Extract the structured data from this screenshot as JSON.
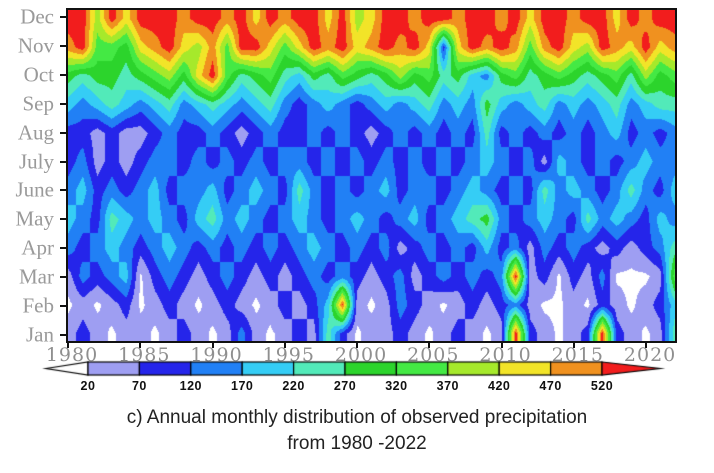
{
  "caption": {
    "line1": "c) Annual monthly distribution of observed precipitation",
    "line2": "from 1980 -2022"
  },
  "chart_data": {
    "type": "heatmap",
    "subtype": "filled-contour",
    "xlabel": "",
    "ylabel": "",
    "x_start": 1980,
    "x_end": 2022,
    "x_ticks": [
      1980,
      1985,
      1990,
      1995,
      2000,
      2005,
      2010,
      2015,
      2020
    ],
    "months": [
      "Jan",
      "Feb",
      "Mar",
      "Apr",
      "May",
      "June",
      "July",
      "Aug",
      "Sep",
      "Oct",
      "Nov",
      "Dec"
    ],
    "levels": [
      20,
      70,
      120,
      170,
      220,
      270,
      320,
      370,
      420,
      470,
      520
    ],
    "colorbar_labels": [
      "20",
      "70",
      "120",
      "170",
      "220",
      "270",
      "320",
      "370",
      "420",
      "470",
      "520"
    ],
    "colors": {
      "below": "#ffffff",
      "bins": [
        "#9e9ef2",
        "#2525ea",
        "#2180f5",
        "#35cdf5",
        "#52eab9",
        "#2cd42c",
        "#44e944",
        "#a6e92b",
        "#f2e428",
        "#f0911f"
      ],
      "above": "#f21d1d",
      "axis": "#111111",
      "tick_label": "#8f8f8f",
      "month_label": "#9a9a9a"
    },
    "values_by_year": [
      [
        45,
        10,
        45,
        145,
        195,
        145,
        95,
        95,
        195,
        295,
        495,
        550
      ],
      [
        95,
        45,
        145,
        95,
        145,
        195,
        145,
        95,
        145,
        245,
        550,
        550
      ],
      [
        45,
        10,
        95,
        145,
        95,
        95,
        45,
        45,
        195,
        295,
        345,
        395
      ],
      [
        10,
        45,
        145,
        195,
        245,
        145,
        95,
        95,
        245,
        295,
        345,
        550
      ],
      [
        45,
        95,
        195,
        145,
        195,
        95,
        45,
        45,
        195,
        245,
        295,
        445
      ],
      [
        45,
        10,
        10,
        95,
        145,
        145,
        95,
        45,
        145,
        295,
        445,
        550
      ],
      [
        10,
        45,
        95,
        145,
        195,
        195,
        145,
        95,
        195,
        345,
        495,
        550
      ],
      [
        45,
        95,
        145,
        195,
        145,
        95,
        145,
        145,
        245,
        395,
        550,
        550
      ],
      [
        95,
        45,
        95,
        145,
        95,
        145,
        95,
        95,
        145,
        295,
        445,
        495
      ],
      [
        45,
        10,
        45,
        95,
        195,
        145,
        145,
        95,
        195,
        445,
        395,
        550
      ],
      [
        10,
        45,
        95,
        145,
        245,
        195,
        95,
        145,
        245,
        550,
        495,
        550
      ],
      [
        45,
        95,
        145,
        95,
        145,
        95,
        145,
        95,
        195,
        345,
        345,
        495
      ],
      [
        145,
        45,
        95,
        145,
        195,
        145,
        95,
        45,
        145,
        245,
        550,
        550
      ],
      [
        45,
        10,
        45,
        95,
        145,
        195,
        145,
        95,
        195,
        295,
        550,
        445
      ],
      [
        10,
        45,
        95,
        145,
        95,
        145,
        95,
        145,
        245,
        345,
        445,
        550
      ],
      [
        45,
        95,
        45,
        95,
        145,
        95,
        145,
        95,
        145,
        245,
        345,
        495
      ],
      [
        95,
        45,
        95,
        145,
        195,
        245,
        145,
        95,
        95,
        195,
        445,
        550
      ],
      [
        45,
        95,
        145,
        195,
        145,
        145,
        95,
        145,
        145,
        295,
        550,
        550
      ],
      [
        245,
        195,
        95,
        145,
        95,
        95,
        145,
        95,
        195,
        245,
        495,
        445
      ],
      [
        95,
        530,
        145,
        95,
        145,
        145,
        95,
        145,
        145,
        345,
        550,
        550
      ],
      [
        10,
        45,
        95,
        145,
        195,
        95,
        145,
        95,
        95,
        295,
        445,
        395
      ],
      [
        45,
        10,
        45,
        95,
        145,
        145,
        95,
        45,
        145,
        245,
        495,
        445
      ],
      [
        45,
        45,
        95,
        145,
        95,
        195,
        145,
        95,
        195,
        295,
        550,
        550
      ],
      [
        95,
        145,
        145,
        45,
        145,
        95,
        95,
        145,
        145,
        395,
        495,
        550
      ],
      [
        45,
        95,
        45,
        95,
        195,
        145,
        145,
        95,
        195,
        295,
        550,
        495
      ],
      [
        10,
        45,
        95,
        145,
        95,
        145,
        95,
        145,
        245,
        345,
        445,
        550
      ],
      [
        45,
        10,
        145,
        95,
        145,
        95,
        145,
        95,
        145,
        245,
        95,
        550
      ],
      [
        95,
        45,
        95,
        145,
        195,
        145,
        95,
        145,
        195,
        295,
        445,
        495
      ],
      [
        45,
        95,
        145,
        95,
        245,
        195,
        145,
        95,
        145,
        195,
        550,
        550
      ],
      [
        10,
        45,
        95,
        195,
        295,
        145,
        195,
        245,
        295,
        145,
        495,
        550
      ],
      [
        45,
        95,
        145,
        95,
        145,
        95,
        145,
        95,
        195,
        295,
        550,
        495
      ],
      [
        550,
        145,
        550,
        145,
        95,
        145,
        95,
        145,
        145,
        345,
        495,
        550
      ],
      [
        95,
        45,
        45,
        45,
        145,
        95,
        145,
        95,
        195,
        245,
        345,
        445
      ],
      [
        45,
        10,
        95,
        145,
        195,
        245,
        45,
        145,
        245,
        295,
        495,
        550
      ],
      [
        10,
        10,
        10,
        95,
        145,
        145,
        195,
        95,
        145,
        345,
        550,
        550
      ],
      [
        45,
        45,
        95,
        145,
        95,
        195,
        145,
        145,
        195,
        295,
        445,
        495
      ],
      [
        95,
        10,
        45,
        95,
        245,
        145,
        95,
        95,
        145,
        245,
        395,
        550
      ],
      [
        550,
        95,
        145,
        45,
        145,
        95,
        145,
        145,
        195,
        295,
        550,
        550
      ],
      [
        95,
        45,
        10,
        95,
        195,
        145,
        95,
        195,
        245,
        345,
        495,
        445
      ],
      [
        45,
        10,
        10,
        45,
        145,
        245,
        145,
        95,
        145,
        245,
        445,
        550
      ],
      [
        10,
        45,
        10,
        95,
        95,
        145,
        195,
        145,
        195,
        395,
        550,
        495
      ],
      [
        45,
        95,
        45,
        145,
        195,
        95,
        145,
        95,
        245,
        295,
        445,
        550
      ],
      [
        245,
        195,
        345,
        245,
        145,
        195,
        145,
        145,
        245,
        345,
        495,
        550
      ]
    ]
  }
}
